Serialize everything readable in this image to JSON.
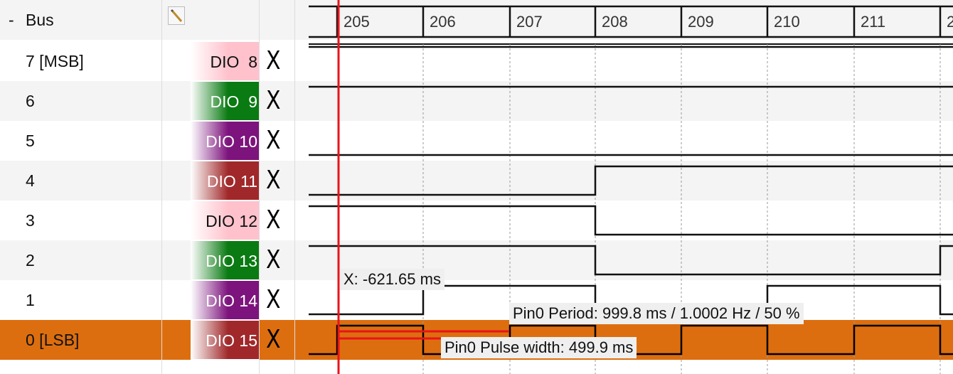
{
  "bus": {
    "label": "Bus",
    "collapse_symbol": "-",
    "edit_icon": "edit-pencil-icon"
  },
  "timeline": {
    "ticks": [
      "205",
      "206",
      "207",
      "208",
      "209",
      "210",
      "211",
      "2"
    ]
  },
  "channels": [
    {
      "name": "7 [MSB]",
      "dio": "DIO  8",
      "remove": "X",
      "dio_color": "#ffc2cc",
      "dio_text": "#111111"
    },
    {
      "name": "6",
      "dio": "DIO  9",
      "remove": "X",
      "dio_color": "#0a7a12",
      "dio_text": "#ffffff"
    },
    {
      "name": "5",
      "dio": "DIO 10",
      "remove": "X",
      "dio_color": "#7d137d",
      "dio_text": "#ffffff"
    },
    {
      "name": "4",
      "dio": "DIO 11",
      "remove": "X",
      "dio_color": "#a0282a",
      "dio_text": "#ffffff"
    },
    {
      "name": "3",
      "dio": "DIO 12",
      "remove": "X",
      "dio_color": "#ffc2cc",
      "dio_text": "#111111"
    },
    {
      "name": "2",
      "dio": "DIO 13",
      "remove": "X",
      "dio_color": "#0a7a12",
      "dio_text": "#ffffff"
    },
    {
      "name": "1",
      "dio": "DIO 14",
      "remove": "X",
      "dio_color": "#7d137d",
      "dio_text": "#ffffff"
    },
    {
      "name": "0 [LSB]",
      "dio": "DIO 15",
      "remove": "X",
      "dio_color": "#a0282a",
      "dio_text": "#ffffff"
    }
  ],
  "cursor": {
    "readout": "X: -621.65 ms",
    "color": "#e8141a"
  },
  "measurements": {
    "period": "Pin0 Period: 999.8 ms / 1.0002 Hz / 50 %",
    "pulse_width": "Pin0 Pulse width: 499.9 ms"
  },
  "colors": {
    "selected_row": "#dd6e0f",
    "wave": "#111111"
  }
}
